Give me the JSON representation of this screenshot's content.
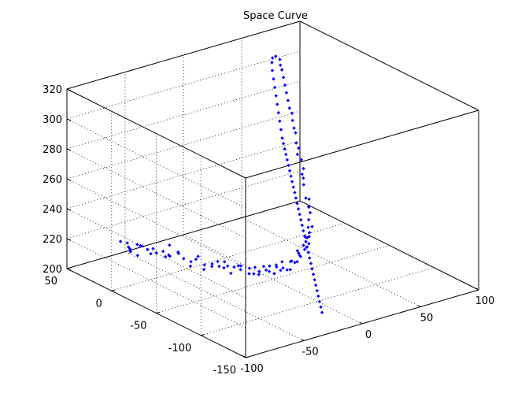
{
  "chart_data": {
    "type": "scatter",
    "title": "Space Curve",
    "xlabel": "",
    "ylabel": "",
    "zlabel": "",
    "grid": true,
    "view": "3d-box",
    "xlim": [
      -100,
      100
    ],
    "ylim": [
      -150,
      50
    ],
    "zlim": [
      200,
      320
    ],
    "x_ticks": [
      "-100",
      "-50",
      "0",
      "50",
      "100"
    ],
    "y_ticks": [
      "-150",
      "-100",
      "-50",
      "0",
      "50"
    ],
    "z_ticks": [
      "200",
      "220",
      "240",
      "260",
      "280",
      "300",
      "320"
    ],
    "marker_color": "#0000ff",
    "series": [
      {
        "points": [
          [
            -100,
            -10,
            236
          ],
          [
            -98,
            -15,
            236
          ],
          [
            -97,
            -15,
            233
          ],
          [
            -96,
            -16,
            230
          ],
          [
            -95,
            -14,
            231
          ],
          [
            -93,
            -20,
            228
          ],
          [
            -91,
            -17,
            234
          ],
          [
            -89,
            -18,
            233
          ],
          [
            -87,
            -17,
            232
          ],
          [
            -86,
            -22,
            231
          ],
          [
            -84,
            -23,
            228
          ],
          [
            -82,
            -23,
            231
          ],
          [
            -80,
            -24,
            228
          ],
          [
            -78,
            -29,
            230
          ],
          [
            -76,
            -29,
            226
          ],
          [
            -74,
            -30,
            227
          ],
          [
            -73,
            -30,
            226
          ],
          [
            -71,
            -27,
            232
          ],
          [
            -69,
            -34,
            229
          ],
          [
            -67,
            -32,
            227
          ],
          [
            -65,
            -35,
            224
          ],
          [
            -63,
            -40,
            220
          ],
          [
            -61,
            -38,
            222
          ],
          [
            -59,
            -41,
            224
          ],
          [
            -58,
            -42,
            226
          ],
          [
            -56,
            -46,
            218
          ],
          [
            -54,
            -44,
            220
          ],
          [
            -52,
            -50,
            222
          ],
          [
            -50,
            -47,
            219
          ],
          [
            -48,
            -51,
            223
          ],
          [
            -46,
            -50,
            219
          ],
          [
            -45,
            -54,
            219
          ],
          [
            -43,
            -52,
            222
          ],
          [
            -41,
            -53,
            219
          ],
          [
            -39,
            -54,
            214
          ],
          [
            -37,
            -55,
            218
          ],
          [
            -35,
            -57,
            219
          ],
          [
            -33,
            -57,
            216
          ],
          [
            -32,
            -56,
            218
          ],
          [
            -30,
            -63,
            218
          ],
          [
            -28,
            -60,
            213
          ],
          [
            -26,
            -64,
            218
          ],
          [
            -24,
            -60,
            212
          ],
          [
            -22,
            -63,
            212
          ],
          [
            -20,
            -61,
            213
          ],
          [
            -18,
            -66,
            215
          ],
          [
            -17,
            -62,
            216
          ],
          [
            -15,
            -66,
            217
          ],
          [
            -13,
            -63,
            212
          ],
          [
            -11,
            -66,
            211
          ],
          [
            -9,
            -66,
            215
          ],
          [
            -7,
            -63,
            215
          ],
          [
            -5,
            -68,
            214
          ],
          [
            -4,
            -64,
            211
          ],
          [
            -2,
            -63,
            216
          ],
          [
            0,
            -66,
            211
          ],
          [
            2,
            -67,
            211
          ],
          [
            4,
            -66,
            216
          ],
          [
            6,
            -62,
            214
          ],
          [
            8,
            -67,
            215
          ],
          [
            9,
            -63,
            213
          ],
          [
            11,
            -66,
            218
          ],
          [
            13,
            -62,
            218
          ],
          [
            15,
            -58,
            218
          ],
          [
            17,
            -59,
            214
          ],
          [
            19,
            -63,
            221
          ],
          [
            21,
            -57,
            220
          ],
          [
            22,
            -57,
            217
          ],
          [
            24,
            -59,
            221
          ],
          [
            26,
            -53,
            223
          ],
          [
            28,
            -52,
            222
          ],
          [
            30,
            -52,
            225
          ],
          [
            32,
            -49,
            221
          ],
          [
            33,
            -51,
            228
          ],
          [
            35,
            -44,
            225
          ],
          [
            37,
            -42,
            229
          ],
          [
            39,
            -41,
            233
          ],
          [
            41,
            -37,
            235
          ],
          [
            43,
            -34,
            234
          ],
          [
            45,
            -32,
            238
          ],
          [
            46,
            -27,
            237
          ],
          [
            48,
            -22,
            244
          ],
          [
            50,
            -19,
            247
          ],
          [
            52,
            -15,
            248
          ],
          [
            54,
            -14,
            251
          ],
          [
            56,
            -9,
            255
          ],
          [
            58,
            -2,
            256
          ],
          [
            59,
            -2,
            260
          ],
          [
            60,
            2,
            262
          ],
          [
            61,
            4,
            268
          ],
          [
            62,
            7,
            270
          ],
          [
            63,
            10,
            274
          ],
          [
            64,
            12,
            278
          ],
          [
            65,
            16,
            280
          ],
          [
            66,
            19,
            284
          ],
          [
            67,
            22,
            288
          ],
          [
            68,
            25,
            292
          ],
          [
            69,
            28,
            296
          ],
          [
            70,
            31,
            300
          ],
          [
            71,
            34,
            302
          ],
          [
            72,
            36,
            305
          ],
          [
            70,
            38,
            307
          ],
          [
            68,
            39,
            306
          ],
          [
            66,
            37,
            304
          ],
          [
            64,
            34,
            300
          ],
          [
            62,
            30,
            296
          ],
          [
            60,
            26,
            292
          ],
          [
            58,
            22,
            288
          ],
          [
            56,
            18,
            284
          ],
          [
            54,
            14,
            280
          ],
          [
            52,
            10,
            276
          ],
          [
            50,
            6,
            272
          ],
          [
            48,
            2,
            268
          ],
          [
            46,
            -2,
            266
          ],
          [
            44,
            -6,
            264
          ],
          [
            42,
            -10,
            262
          ],
          [
            40,
            -14,
            260
          ],
          [
            38,
            -18,
            258
          ],
          [
            36,
            -22,
            256
          ],
          [
            34,
            -26,
            254
          ],
          [
            32,
            -30,
            252
          ],
          [
            30,
            -34,
            250
          ],
          [
            28,
            -38,
            248
          ],
          [
            26,
            -42,
            246
          ],
          [
            24,
            -46,
            244
          ],
          [
            22,
            -50,
            242
          ],
          [
            20,
            -54,
            240
          ],
          [
            18,
            -58,
            238
          ],
          [
            16,
            -62,
            236
          ],
          [
            14,
            -66,
            234
          ],
          [
            12,
            -70,
            232
          ],
          [
            10,
            -74,
            230
          ],
          [
            8,
            -78,
            228
          ],
          [
            6,
            -82,
            226
          ],
          [
            4,
            -86,
            224
          ],
          [
            2,
            -90,
            222
          ],
          [
            0,
            -94,
            220
          ],
          [
            -2,
            -98,
            218
          ],
          [
            -4,
            -102,
            216
          ],
          [
            -6,
            -106,
            214
          ],
          [
            -8,
            -110,
            212
          ],
          [
            -10,
            -114,
            210
          ],
          [
            -12,
            -118,
            208
          ],
          [
            -14,
            -122,
            206
          ],
          [
            -16,
            -126,
            204
          ]
        ]
      }
    ]
  }
}
